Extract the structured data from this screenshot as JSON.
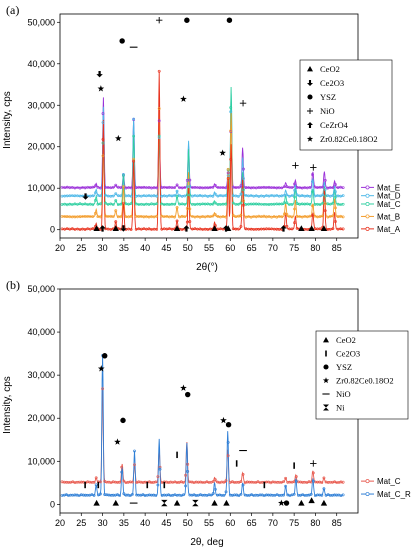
{
  "chart_data": [
    {
      "type": "line",
      "panel_label": "(a)",
      "xlabel": "2θ(°)",
      "ylabel": "Intensity, cps",
      "xlim": [
        20,
        90
      ],
      "ylim": [
        -2000,
        52000
      ],
      "x_ticks": [
        "20",
        "25",
        "30",
        "35",
        "40",
        "45",
        "50",
        "55",
        "60",
        "65",
        "70",
        "75",
        "80",
        "85"
      ],
      "y_ticks": [
        "0",
        "10,000",
        "20,000",
        "30,000",
        "40,000",
        "50,000"
      ],
      "grid": false,
      "legend_placement": "right-center",
      "legend": [
        {
          "symbol": "triangle",
          "label": "CeO2"
        },
        {
          "symbol": "arrow-down",
          "label": "Ce2O3"
        },
        {
          "symbol": "circle",
          "label": "YSZ"
        },
        {
          "symbol": "plus",
          "label": "NiO"
        },
        {
          "symbol": "arrow-up",
          "label": "CeZrO4"
        },
        {
          "symbol": "star",
          "label": "Zr0.82Ce0.18O2"
        }
      ],
      "series": [
        {
          "name": "Mat_E",
          "color": "#9b30d9",
          "offset": 10000
        },
        {
          "name": "Mat_D",
          "color": "#4db8e8",
          "offset": 8000
        },
        {
          "name": "Mat_C",
          "color": "#2ecfa0",
          "offset": 6000
        },
        {
          "name": "Mat_B",
          "color": "#f39c2a",
          "offset": 3000
        },
        {
          "name": "Mat_A",
          "color": "#e8321e",
          "offset": 0
        }
      ],
      "peaks": [
        {
          "x": 28.5,
          "h": 2500
        },
        {
          "x": 30.2,
          "h": 40000
        },
        {
          "x": 33.1,
          "h": 1800
        },
        {
          "x": 34.9,
          "h": 9000
        },
        {
          "x": 37.3,
          "h": 30000
        },
        {
          "x": 43.3,
          "h": 40000
        },
        {
          "x": 47.5,
          "h": 2500
        },
        {
          "x": 50.2,
          "h": 20000
        },
        {
          "x": 56.3,
          "h": 2000
        },
        {
          "x": 59.5,
          "h": 13000
        },
        {
          "x": 60.2,
          "h": 38000
        },
        {
          "x": 62.9,
          "h": 18000
        },
        {
          "x": 73.0,
          "h": 4000
        },
        {
          "x": 75.3,
          "h": 5000
        },
        {
          "x": 79.4,
          "h": 7000
        },
        {
          "x": 82.1,
          "h": 10000
        },
        {
          "x": 84.5,
          "h": 5000
        }
      ],
      "marker_labels": [
        {
          "symbol": "plus",
          "x": 43.3,
          "y": 50500
        },
        {
          "symbol": "circle",
          "x": 49.8,
          "y": 50500
        },
        {
          "symbol": "circle",
          "x": 59.8,
          "y": 50500
        },
        {
          "symbol": "circle",
          "x": 34.6,
          "y": 45500
        },
        {
          "symbol": "minus",
          "x": 37.3,
          "y": 44000
        },
        {
          "symbol": "star",
          "x": 49.0,
          "y": 31500
        },
        {
          "symbol": "plus",
          "x": 63.0,
          "y": 30500
        },
        {
          "symbol": "star",
          "x": 58.2,
          "y": 18500
        },
        {
          "symbol": "star",
          "x": 33.7,
          "y": 22000
        },
        {
          "symbol": "plus",
          "x": 75.3,
          "y": 15500
        },
        {
          "symbol": "plus",
          "x": 79.5,
          "y": 15000
        },
        {
          "symbol": "star",
          "x": 29.6,
          "y": 34000
        },
        {
          "symbol": "arrow-down",
          "x": 29.3,
          "y": 37500
        },
        {
          "symbol": "arrow-down",
          "x": 26.0,
          "y": 8000
        },
        {
          "symbol": "triangle",
          "x": 28.6,
          "y": 300
        },
        {
          "symbol": "arrow-up",
          "x": 30.0,
          "y": 300
        },
        {
          "symbol": "triangle",
          "x": 33.1,
          "y": 300
        },
        {
          "symbol": "arrow-down",
          "x": 34.9,
          "y": 300
        },
        {
          "symbol": "triangle",
          "x": 47.5,
          "y": 300
        },
        {
          "symbol": "arrow-up",
          "x": 49.7,
          "y": 300
        },
        {
          "symbol": "triangle",
          "x": 56.3,
          "y": 300
        },
        {
          "symbol": "arrow-up",
          "x": 59.0,
          "y": 300
        },
        {
          "symbol": "triangle",
          "x": 59.5,
          "y": 300
        },
        {
          "symbol": "arrow-up",
          "x": 72.5,
          "y": 300
        },
        {
          "symbol": "triangle",
          "x": 76.7,
          "y": 300
        },
        {
          "symbol": "triangle",
          "x": 79.1,
          "y": 300
        },
        {
          "symbol": "triangle",
          "x": 82.0,
          "y": 300
        }
      ]
    },
    {
      "type": "line",
      "panel_label": "(b)",
      "xlabel": "2θ, deg",
      "ylabel": "Intensity, cps",
      "xlim": [
        20,
        90
      ],
      "ylim": [
        -2000,
        50000
      ],
      "x_ticks": [
        "20",
        "25",
        "30",
        "35",
        "40",
        "45",
        "50",
        "55",
        "60",
        "65",
        "70",
        "75",
        "80",
        "85"
      ],
      "y_ticks": [
        "0",
        "10,000",
        "20,000",
        "30,000",
        "40,000",
        "50,000"
      ],
      "grid": false,
      "legend_placement": "right-center",
      "legend": [
        {
          "symbol": "triangle",
          "label": "CeO2"
        },
        {
          "symbol": "bar",
          "label": "Ce2O3"
        },
        {
          "symbol": "circle",
          "label": "YSZ"
        },
        {
          "symbol": "star",
          "label": "Zr0.82Ce0.18O2"
        },
        {
          "symbol": "minus",
          "label": "NiO"
        },
        {
          "symbol": "hourglass",
          "label": "Ni"
        }
      ],
      "series": [
        {
          "name": "Mat_C",
          "color": "#e85a4f",
          "offset": 5000
        },
        {
          "name": "Mat_C_R",
          "color": "#2f7fd6",
          "offset": 2000
        }
      ],
      "peaks": [
        {
          "x": 28.5,
          "h": 2500
        },
        {
          "x": 30.0,
          "h": 40000
        },
        {
          "x": 34.6,
          "h": 13000
        },
        {
          "x": 37.5,
          "h": 12000
        },
        {
          "x": 43.3,
          "h": 14000
        },
        {
          "x": 49.8,
          "h": 23000
        },
        {
          "x": 56.3,
          "h": 4000
        },
        {
          "x": 59.4,
          "h": 15000
        },
        {
          "x": 62.9,
          "h": 4500
        },
        {
          "x": 73.0,
          "h": 3500
        },
        {
          "x": 75.4,
          "h": 4000
        },
        {
          "x": 79.4,
          "h": 5000
        },
        {
          "x": 82.0,
          "h": 3000
        }
      ],
      "marker_labels": [
        {
          "symbol": "circle",
          "x": 30.5,
          "y": 34500
        },
        {
          "symbol": "star",
          "x": 29.7,
          "y": 31500
        },
        {
          "symbol": "star",
          "x": 49.0,
          "y": 27000
        },
        {
          "symbol": "circle",
          "x": 50.0,
          "y": 25500
        },
        {
          "symbol": "star",
          "x": 58.4,
          "y": 19500
        },
        {
          "symbol": "circle",
          "x": 59.6,
          "y": 18500
        },
        {
          "symbol": "circle",
          "x": 34.8,
          "y": 19500
        },
        {
          "symbol": "star",
          "x": 33.5,
          "y": 14500
        },
        {
          "symbol": "minus",
          "x": 63.0,
          "y": 12500
        },
        {
          "symbol": "bar",
          "x": 47.5,
          "y": 11500
        },
        {
          "symbol": "bar",
          "x": 61.5,
          "y": 9500
        },
        {
          "symbol": "bar",
          "x": 75.0,
          "y": 9000
        },
        {
          "symbol": "plus",
          "x": 79.5,
          "y": 9500
        },
        {
          "symbol": "bar",
          "x": 25.9,
          "y": 4500
        },
        {
          "symbol": "bar",
          "x": 29.0,
          "y": 4500
        },
        {
          "symbol": "bar",
          "x": 40.5,
          "y": 4500
        },
        {
          "symbol": "bar",
          "x": 44.5,
          "y": 4500
        },
        {
          "symbol": "bar",
          "x": 68.0,
          "y": 4500
        },
        {
          "symbol": "triangle",
          "x": 28.6,
          "y": 300
        },
        {
          "symbol": "triangle",
          "x": 33.1,
          "y": 300
        },
        {
          "symbol": "minus",
          "x": 37.3,
          "y": 300
        },
        {
          "symbol": "hourglass",
          "x": 44.5,
          "y": 300
        },
        {
          "symbol": "triangle",
          "x": 47.5,
          "y": 300
        },
        {
          "symbol": "hourglass",
          "x": 51.8,
          "y": 300
        },
        {
          "symbol": "triangle",
          "x": 56.3,
          "y": 300
        },
        {
          "symbol": "triangle",
          "x": 59.1,
          "y": 300
        },
        {
          "symbol": "star",
          "x": 72.0,
          "y": 300
        },
        {
          "symbol": "circle",
          "x": 73.2,
          "y": 300
        },
        {
          "symbol": "triangle",
          "x": 76.7,
          "y": 300
        },
        {
          "symbol": "triangle",
          "x": 79.1,
          "y": 900
        },
        {
          "symbol": "triangle",
          "x": 82.0,
          "y": 300
        }
      ]
    }
  ]
}
